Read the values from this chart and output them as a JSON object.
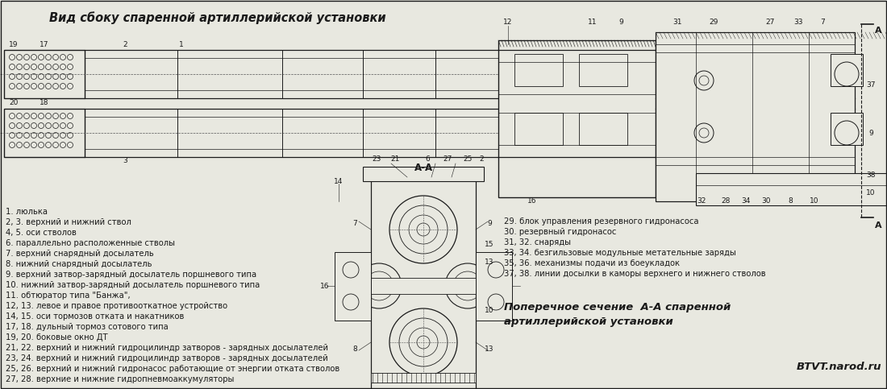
{
  "title": "Вид сбоку спаренной артиллерийской установки",
  "bg_color": "#e8e8e0",
  "line_color": "#1a1a1a",
  "text_color": "#1a1a1a",
  "legend_left": [
    "1. люлька",
    "2, 3. верхний и нижний ствол",
    "4, 5. оси стволов",
    "6. параллельно расположенные стволы",
    "7. верхний снарядный досылатель",
    "8. нижний снарядный досылатель",
    "9. верхний затвор-зарядный досылатель поршневого типа",
    "10. нижний затвор-зарядный досылатель поршневого типа",
    "11. обтюратор типа \"Банжа\",",
    "12, 13. левое и правое противооткатное устройство",
    "14, 15. оси тормозов отката и накатников",
    "17, 18. дульный тормоз сотового типа",
    "19, 20. боковые окно ДТ",
    "21, 22. верхний и нижний гидроцилиндр затворов - зарядных досылателей",
    "23, 24. верхний и нижний гидроцилиндр затворов - зарядных досылателей",
    "25, 26. верхний и нижний гидронасос работающие от энергии отката стволов",
    "27, 28. верхние и нижние гидропневмоаккумуляторы"
  ],
  "legend_right": [
    "29. блок управления резервного гидронасоса",
    "30. резервный гидронасос",
    "31, 32. снаряды",
    "33, 34. безгильзовые модульные метательные заряды",
    "35, 36. механизмы подачи из боеукладок",
    "37, 38. линии досылки в каморы верхнего и нижнего стволов"
  ],
  "section_label": "А-А",
  "section_title_line1": "Поперечное сечение  А-А спаренной",
  "section_title_line2": "артиллерийской установки",
  "watermark": "BTVT.narod.ru",
  "fig_width": 11.0,
  "fig_height": 4.83,
  "dpi": 100
}
